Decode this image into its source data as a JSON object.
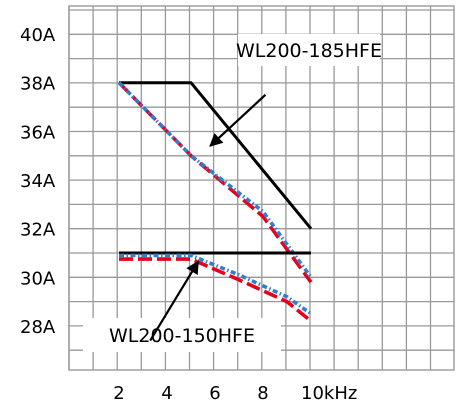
{
  "chart_data": {
    "type": "line",
    "y_tick_labels": [
      "40A",
      "38A",
      "36A",
      "34A",
      "32A",
      "30A",
      "28A"
    ],
    "y_ticks": [
      40,
      38,
      36,
      34,
      32,
      30,
      28
    ],
    "x_tick_labels": [
      "2",
      "4",
      "6",
      "8",
      "10kHz"
    ],
    "x_ticks": [
      2,
      4,
      6,
      8,
      10
    ],
    "xlim": [
      -0.2,
      13.5
    ],
    "ylim": [
      25.6,
      41.35
    ],
    "grid": true,
    "series": [
      {
        "name": "WL200-185HFE",
        "style": "solid",
        "color": "#000000",
        "x": [
          2,
          5,
          10
        ],
        "y": [
          38,
          38,
          32
        ]
      },
      {
        "name": "WL200-185HFE",
        "style": "dashed",
        "color": "#e8001c",
        "x": [
          2,
          5,
          8,
          10
        ],
        "y": [
          38,
          35,
          32.5,
          29.8
        ]
      },
      {
        "name": "WL200-185HFE",
        "style": "dotted",
        "color": "#2e7fd0",
        "x": [
          2,
          5,
          8,
          10
        ],
        "y": [
          38,
          35,
          32.7,
          30
        ]
      },
      {
        "name": "WL200-150HFE",
        "style": "solid",
        "color": "#000000",
        "x": [
          2,
          10
        ],
        "y": [
          31,
          31
        ]
      },
      {
        "name": "WL200-150HFE",
        "style": "dashed",
        "color": "#e8001c",
        "x": [
          2,
          3,
          5,
          7,
          9,
          10
        ],
        "y": [
          30.75,
          30.75,
          30.75,
          29.9,
          29.0,
          28.2
        ]
      },
      {
        "name": "WL200-150HFE",
        "style": "dotted",
        "color": "#2e7fd0",
        "x": [
          2,
          3,
          5,
          7,
          9,
          10
        ],
        "y": [
          30.9,
          30.9,
          30.9,
          30.1,
          29.2,
          28.5
        ]
      }
    ],
    "annotations": [
      {
        "text": "WL200-185HFE",
        "arrow_from": [
          8.1,
          37.5
        ],
        "arrow_to": [
          5.8,
          35.4
        ]
      },
      {
        "text": "WL200-150HFE",
        "arrow_from": [
          3.3,
          27.4
        ],
        "arrow_to": [
          5.3,
          30.65
        ]
      }
    ]
  }
}
